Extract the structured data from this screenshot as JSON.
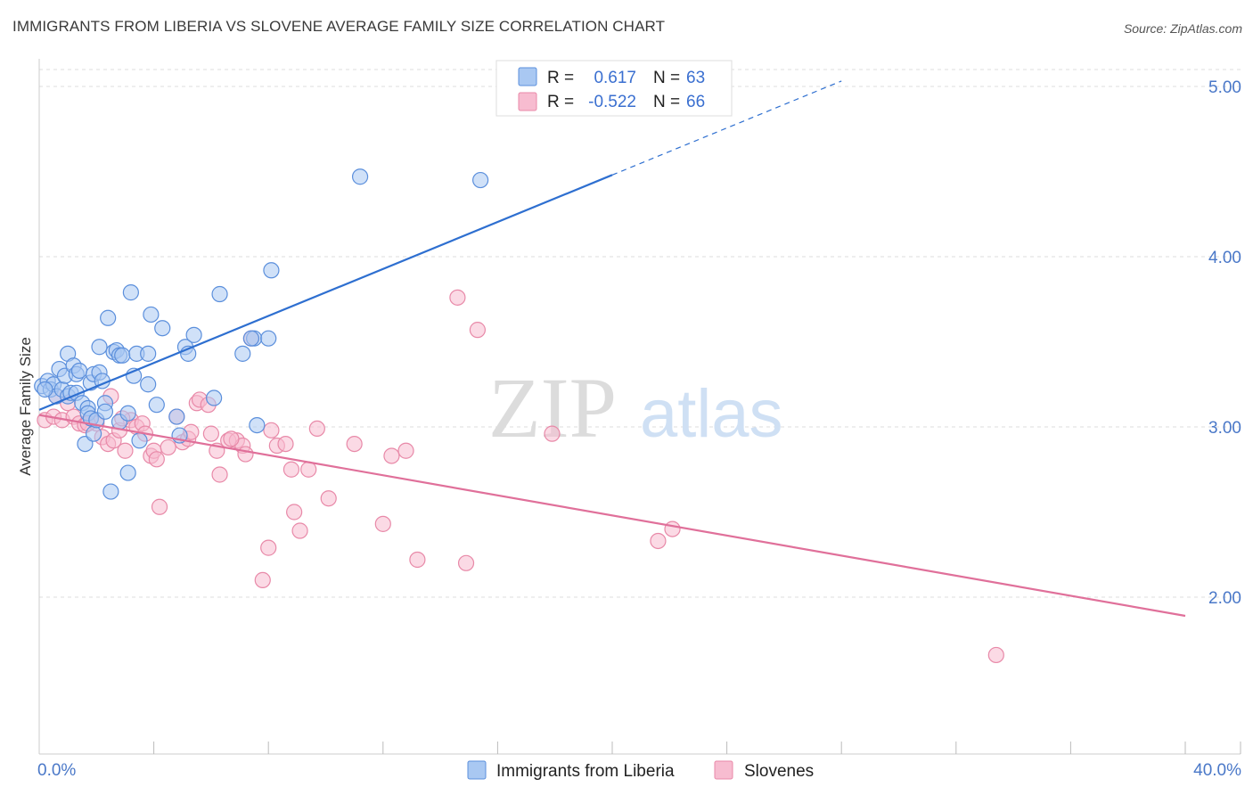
{
  "title": "IMMIGRANTS FROM LIBERIA VS SLOVENE AVERAGE FAMILY SIZE CORRELATION CHART",
  "source": "Source: ZipAtlas.com",
  "watermark": {
    "part1": "ZIP",
    "part2": "atlas"
  },
  "legend": {
    "r_label": "R =",
    "n_label": "N =",
    "entries": [
      {
        "r": "0.617",
        "n": "63"
      },
      {
        "r": "-0.522",
        "n": "66"
      }
    ]
  },
  "colors": {
    "blue_fill": "#a9c8f2",
    "blue_stroke": "#5b8fdc",
    "blue_line": "#2e6fd0",
    "pink_fill": "#f7bcd0",
    "pink_stroke": "#e889a8",
    "pink_line": "#e0709a",
    "grid": "#dddddd",
    "axis_text": "#4a78c8"
  },
  "chart_data": {
    "type": "scatter",
    "xlabel": "",
    "ylabel": "Average Family Size",
    "xlim": [
      0,
      40
    ],
    "ylim": [
      1.2,
      5.1
    ],
    "x_tick_labels": [
      "0.0%",
      "40.0%"
    ],
    "y_ticks": [
      2.0,
      3.0,
      4.0,
      5.0
    ],
    "y_tick_labels": [
      "2.00",
      "3.00",
      "4.00",
      "5.00"
    ],
    "grid": true,
    "legend_position": "top-center",
    "series": [
      {
        "name": "Immigrants from Liberia",
        "color": "#5b8fdc",
        "trend": {
          "x0": 0,
          "y0": 3.1,
          "x1": 20,
          "y1": 4.48,
          "dashed_to_x": 28
        },
        "points": [
          [
            0.1,
            3.24
          ],
          [
            0.3,
            3.27
          ],
          [
            0.4,
            3.22
          ],
          [
            0.5,
            3.25
          ],
          [
            0.6,
            3.18
          ],
          [
            0.7,
            3.34
          ],
          [
            0.8,
            3.22
          ],
          [
            0.9,
            3.3
          ],
          [
            1.0,
            3.18
          ],
          [
            1.0,
            3.43
          ],
          [
            1.1,
            3.2
          ],
          [
            1.2,
            3.36
          ],
          [
            1.3,
            3.31
          ],
          [
            1.3,
            3.2
          ],
          [
            1.4,
            3.33
          ],
          [
            1.5,
            3.14
          ],
          [
            1.6,
            2.9
          ],
          [
            1.7,
            3.11
          ],
          [
            1.7,
            3.08
          ],
          [
            1.8,
            3.05
          ],
          [
            1.8,
            3.26
          ],
          [
            1.9,
            3.31
          ],
          [
            1.9,
            2.96
          ],
          [
            2.0,
            3.04
          ],
          [
            2.1,
            3.32
          ],
          [
            2.1,
            3.47
          ],
          [
            2.2,
            3.27
          ],
          [
            2.3,
            3.14
          ],
          [
            2.3,
            3.09
          ],
          [
            2.4,
            3.64
          ],
          [
            2.5,
            2.62
          ],
          [
            2.6,
            3.44
          ],
          [
            2.7,
            3.45
          ],
          [
            2.8,
            3.42
          ],
          [
            2.8,
            3.03
          ],
          [
            2.9,
            3.42
          ],
          [
            3.1,
            2.73
          ],
          [
            3.1,
            3.08
          ],
          [
            3.2,
            3.79
          ],
          [
            3.3,
            3.3
          ],
          [
            3.4,
            3.43
          ],
          [
            3.5,
            2.92
          ],
          [
            3.8,
            3.43
          ],
          [
            3.8,
            3.25
          ],
          [
            3.9,
            3.66
          ],
          [
            4.1,
            3.13
          ],
          [
            4.3,
            3.58
          ],
          [
            4.8,
            3.06
          ],
          [
            4.9,
            2.95
          ],
          [
            5.1,
            3.47
          ],
          [
            5.2,
            3.43
          ],
          [
            5.4,
            3.54
          ],
          [
            6.3,
            3.78
          ],
          [
            6.1,
            3.17
          ],
          [
            7.1,
            3.43
          ],
          [
            7.5,
            3.52
          ],
          [
            7.6,
            3.01
          ],
          [
            8.0,
            3.52
          ],
          [
            8.1,
            3.92
          ],
          [
            11.2,
            4.47
          ],
          [
            15.4,
            4.45
          ],
          [
            7.4,
            3.52
          ],
          [
            0.2,
            3.22
          ]
        ]
      },
      {
        "name": "Slovenes",
        "color": "#e889a8",
        "trend": {
          "x0": 0,
          "y0": 3.07,
          "x1": 40,
          "y1": 1.89
        },
        "points": [
          [
            0.2,
            3.04
          ],
          [
            0.5,
            3.06
          ],
          [
            0.6,
            3.18
          ],
          [
            0.8,
            3.04
          ],
          [
            1.0,
            3.14
          ],
          [
            1.2,
            3.06
          ],
          [
            1.4,
            3.02
          ],
          [
            1.6,
            3.01
          ],
          [
            1.8,
            3.05
          ],
          [
            2.0,
            3.02
          ],
          [
            2.2,
            2.94
          ],
          [
            2.4,
            2.9
          ],
          [
            2.5,
            3.18
          ],
          [
            2.6,
            2.92
          ],
          [
            2.8,
            2.98
          ],
          [
            3.0,
            2.86
          ],
          [
            3.2,
            3.04
          ],
          [
            3.4,
            3.0
          ],
          [
            3.6,
            3.02
          ],
          [
            3.9,
            2.83
          ],
          [
            4.0,
            2.86
          ],
          [
            4.1,
            2.81
          ],
          [
            4.2,
            2.53
          ],
          [
            4.5,
            2.88
          ],
          [
            4.8,
            3.06
          ],
          [
            5.0,
            2.91
          ],
          [
            5.2,
            2.93
          ],
          [
            5.3,
            2.97
          ],
          [
            5.5,
            3.14
          ],
          [
            5.6,
            3.16
          ],
          [
            5.9,
            3.13
          ],
          [
            6.0,
            2.96
          ],
          [
            6.2,
            2.86
          ],
          [
            6.3,
            2.72
          ],
          [
            6.6,
            2.92
          ],
          [
            6.9,
            2.92
          ],
          [
            7.1,
            2.89
          ],
          [
            7.2,
            2.84
          ],
          [
            7.4,
            3.52
          ],
          [
            7.8,
            2.1
          ],
          [
            8.0,
            2.29
          ],
          [
            8.1,
            2.98
          ],
          [
            8.3,
            2.89
          ],
          [
            8.6,
            2.9
          ],
          [
            8.8,
            2.75
          ],
          [
            8.9,
            2.5
          ],
          [
            9.1,
            2.39
          ],
          [
            9.4,
            2.75
          ],
          [
            9.7,
            2.99
          ],
          [
            10.1,
            2.58
          ],
          [
            11.0,
            2.9
          ],
          [
            12.0,
            2.43
          ],
          [
            12.3,
            2.83
          ],
          [
            12.8,
            2.86
          ],
          [
            13.2,
            2.22
          ],
          [
            14.9,
            2.2
          ],
          [
            14.6,
            3.76
          ],
          [
            15.3,
            3.57
          ],
          [
            17.9,
            2.96
          ],
          [
            21.6,
            2.33
          ],
          [
            22.1,
            2.4
          ],
          [
            33.4,
            1.66
          ],
          [
            1.7,
            3.02
          ],
          [
            2.9,
            3.05
          ],
          [
            3.7,
            2.96
          ],
          [
            6.7,
            2.93
          ]
        ]
      }
    ]
  },
  "bottom_legend": [
    "Immigrants from Liberia",
    "Slovenes"
  ]
}
